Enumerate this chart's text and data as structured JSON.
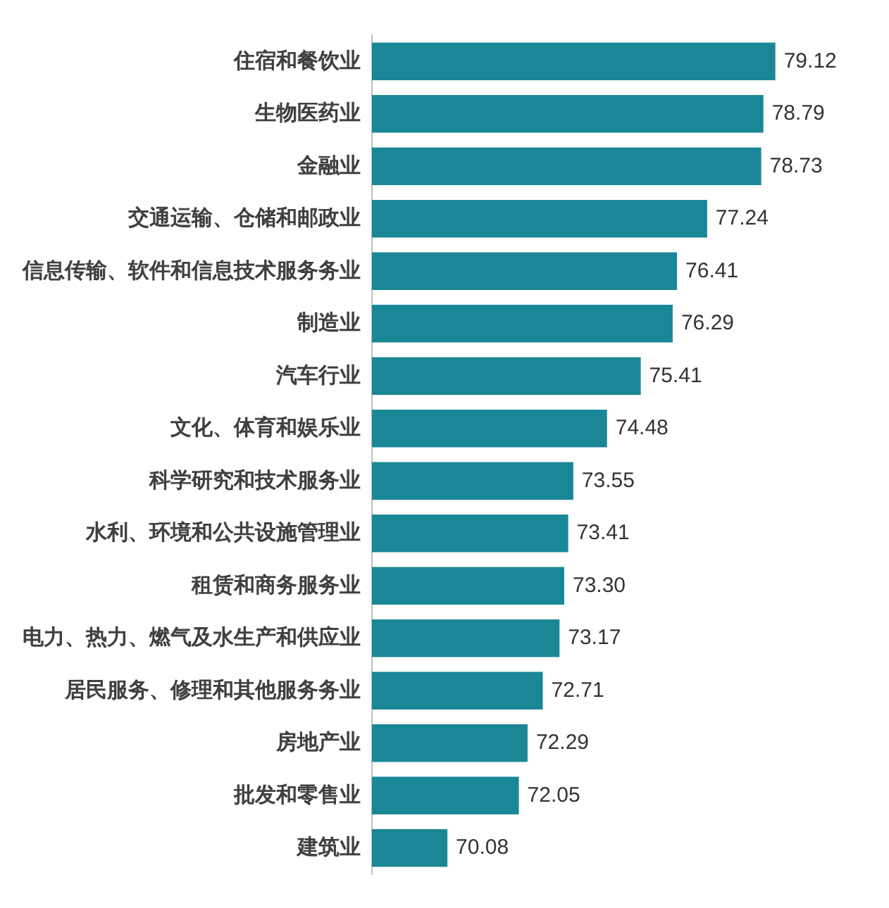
{
  "chart_data": {
    "type": "bar",
    "orientation": "horizontal",
    "categories": [
      "住宿和餐饮业",
      "生物医药业",
      "金融业",
      "交通运输、仓储和邮政业",
      "信息传输、软件和信息技术服务务业",
      "制造业",
      "汽车行业",
      "文化、体育和娱乐业",
      "科学研究和技术服务业",
      "水利、环境和公共设施管理业",
      "租赁和商务服务业",
      "电力、热力、燃气及水生产和供应业",
      "居民服务、修理和其他服务务业",
      "房地产业",
      "批发和零售业",
      "建筑业"
    ],
    "values": [
      79.12,
      78.79,
      78.73,
      77.24,
      76.41,
      76.29,
      75.41,
      74.48,
      73.55,
      73.41,
      73.3,
      73.17,
      72.71,
      72.29,
      72.05,
      70.08
    ],
    "value_labels": [
      "79.12",
      "78.79",
      "78.73",
      "77.24",
      "76.41",
      "76.29",
      "75.41",
      "74.48",
      "73.55",
      "73.41",
      "73.30",
      "73.17",
      "72.71",
      "72.29",
      "72.05",
      "70.08"
    ],
    "color": "#1a8796",
    "tick_labels": "y",
    "grid": false,
    "legend": false
  }
}
